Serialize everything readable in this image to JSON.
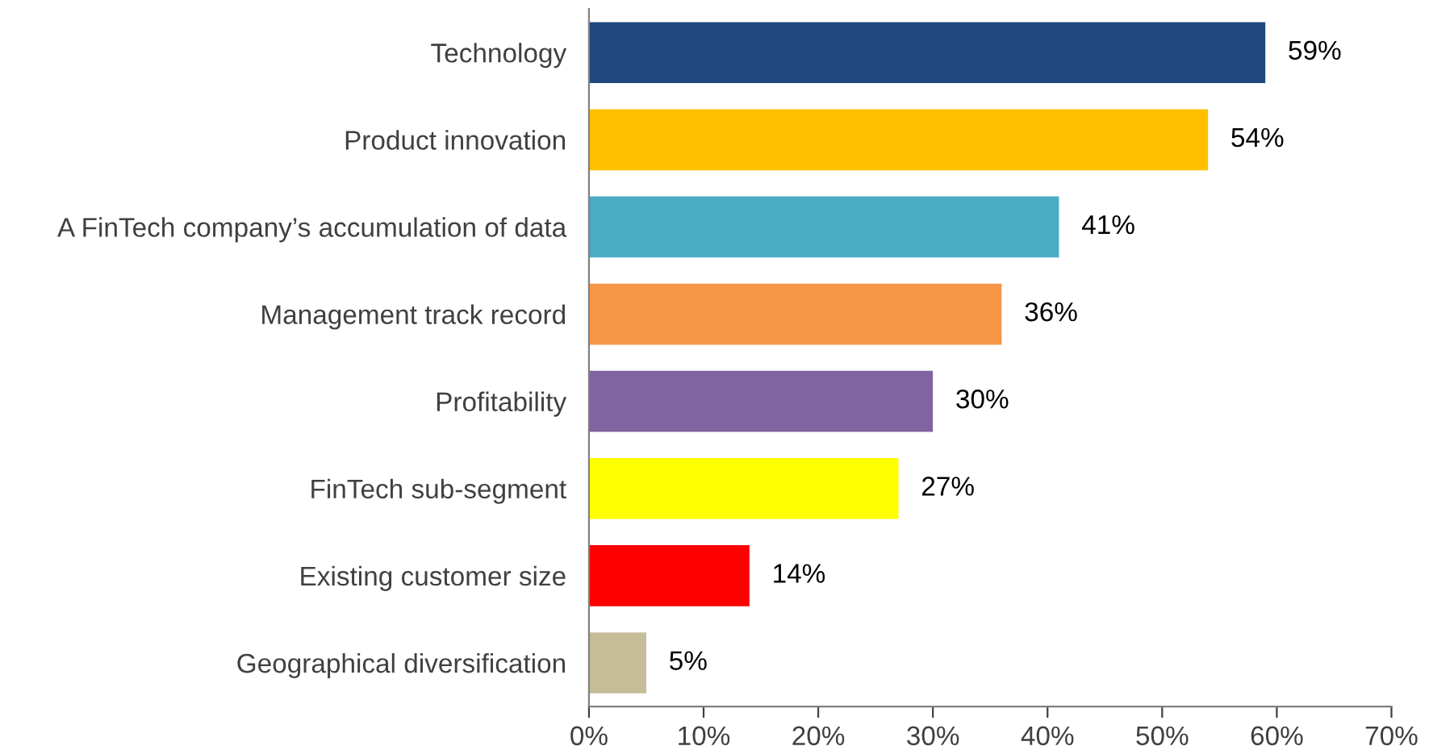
{
  "chart_data": {
    "type": "bar",
    "orientation": "horizontal",
    "categories": [
      "Technology",
      "Product innovation",
      "A FinTech company’s accumulation of data",
      "Management track record",
      "Profitability",
      "FinTech sub-segment",
      "Existing customer size",
      "Geographical diversification"
    ],
    "values": [
      59,
      54,
      41,
      36,
      30,
      27,
      14,
      5
    ],
    "colors": [
      "#1f497d",
      "#ffc000",
      "#4bacc6",
      "#f79646",
      "#8064a2",
      "#ffff00",
      "#ff0000",
      "#c4bd97"
    ],
    "value_labels": [
      "59%",
      "54%",
      "41%",
      "36%",
      "30%",
      "27%",
      "14%",
      "5%"
    ],
    "xlim": [
      0,
      70
    ],
    "xticks": [
      {
        "value": 0,
        "label": "0%"
      },
      {
        "value": 10,
        "label": "10%"
      },
      {
        "value": 20,
        "label": "20%"
      },
      {
        "value": 30,
        "label": "30%"
      },
      {
        "value": 40,
        "label": "40%"
      },
      {
        "value": 50,
        "label": "50%"
      },
      {
        "value": 60,
        "label": "60%"
      },
      {
        "value": 70,
        "label": "70%"
      }
    ],
    "grid": false
  }
}
